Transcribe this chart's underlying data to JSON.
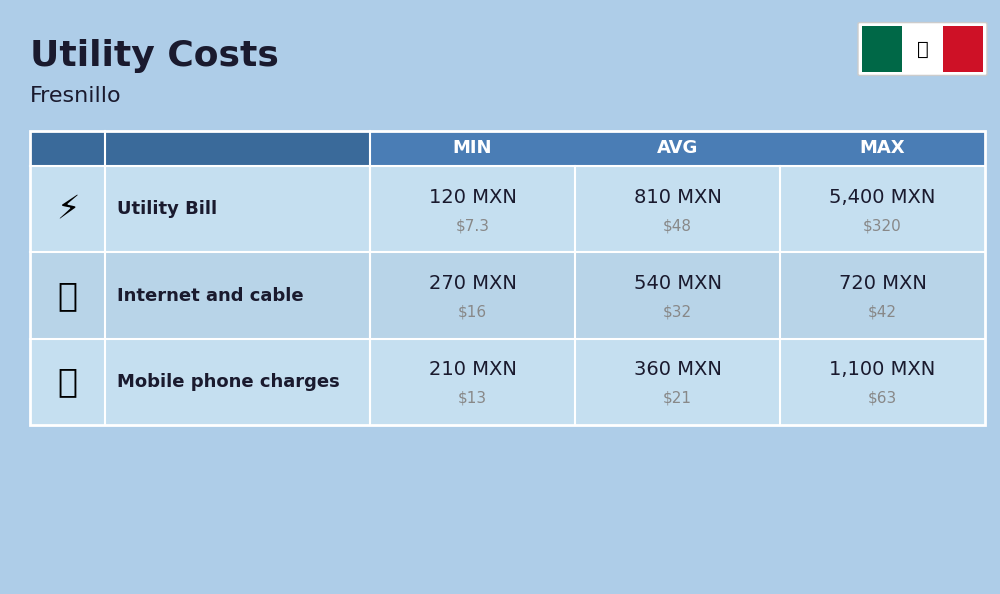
{
  "title": "Utility Costs",
  "subtitle": "Fresnillo",
  "bg_color": "#aecde8",
  "header_color": "#4a7db5",
  "header_text_color": "#ffffff",
  "row_color_1": "#c5dff0",
  "row_color_2": "#b8d4e8",
  "col_headers": [
    "MIN",
    "AVG",
    "MAX"
  ],
  "rows": [
    {
      "icon": "⚡",
      "label": "Utility Bill",
      "min_mxn": "120 MXN",
      "min_usd": "$7.3",
      "avg_mxn": "810 MXN",
      "avg_usd": "$48",
      "max_mxn": "5,400 MXN",
      "max_usd": "$320"
    },
    {
      "icon": "📶",
      "label": "Internet and cable",
      "min_mxn": "270 MXN",
      "min_usd": "$16",
      "avg_mxn": "540 MXN",
      "avg_usd": "$32",
      "max_mxn": "720 MXN",
      "max_usd": "$42"
    },
    {
      "icon": "📱",
      "label": "Mobile phone charges",
      "min_mxn": "210 MXN",
      "min_usd": "$13",
      "avg_mxn": "360 MXN",
      "avg_usd": "$21",
      "max_mxn": "1,100 MXN",
      "max_usd": "$63"
    }
  ],
  "divider_color": "#ffffff",
  "text_dark": "#1a1a2e",
  "text_usd": "#888888",
  "label_fontsize": 13,
  "value_fontsize": 14,
  "usd_fontsize": 11,
  "header_fontsize": 13
}
